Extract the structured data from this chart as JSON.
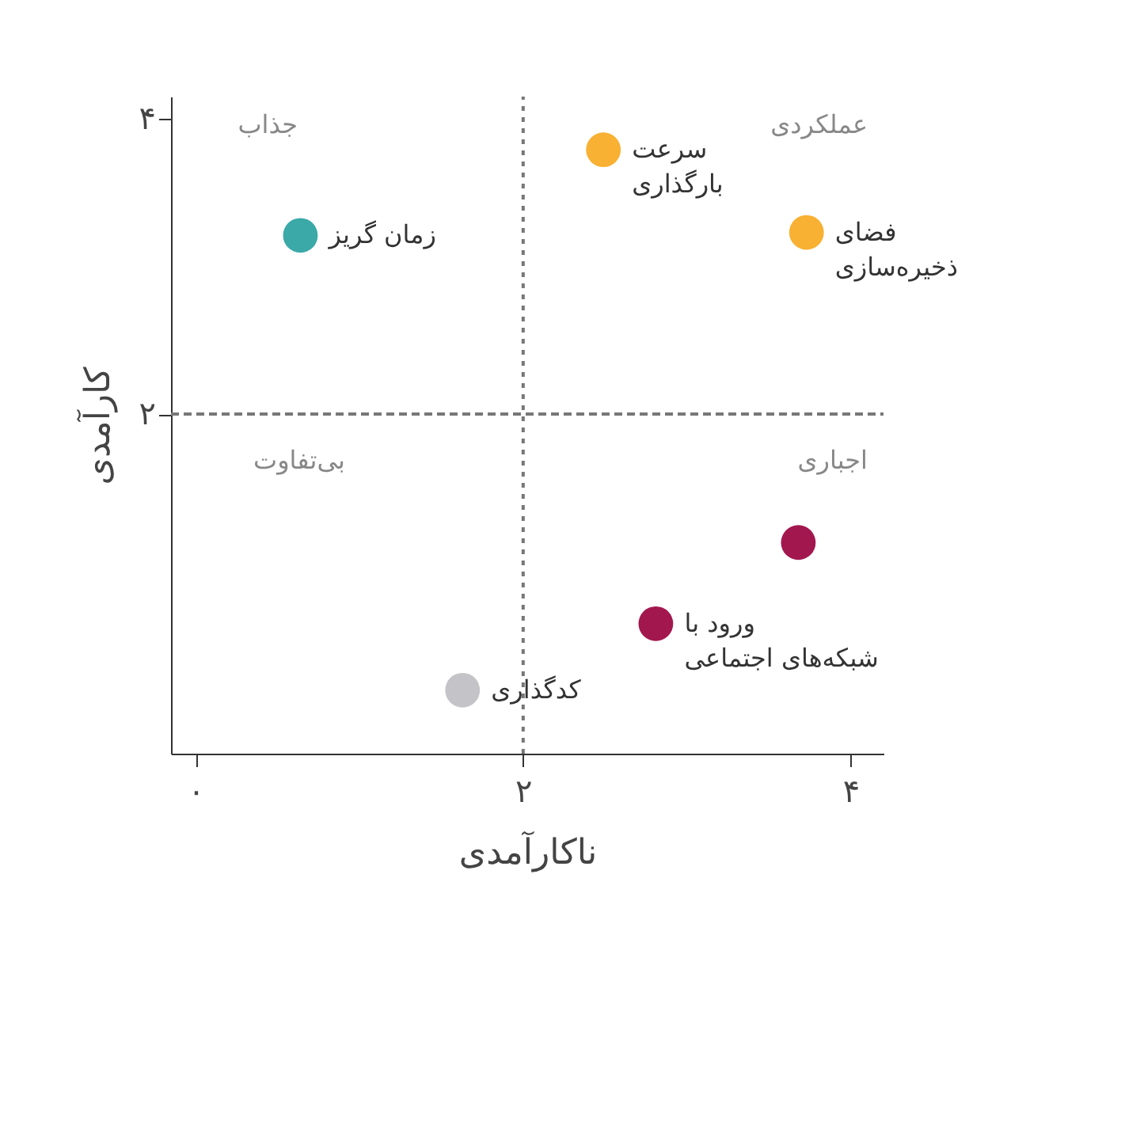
{
  "chart_data": {
    "type": "scatter",
    "xlabel": "ناکارآمدی",
    "ylabel": "کارآمدی",
    "x": [
      0.64,
      2.49,
      3.73,
      3.68,
      2.81,
      1.63
    ],
    "values": [
      3.21,
      3.79,
      3.23,
      1.13,
      0.58,
      0.13
    ],
    "colors": [
      "#3aa9a8",
      "#f8b133",
      "#f8b133",
      "#a3174f",
      "#a3174f",
      "#c4c4c8"
    ],
    "marker": "circle",
    "xlim": [
      -0.15,
      4.2
    ],
    "ylim": [
      -0.3,
      4.15
    ],
    "xticks": [
      {
        "value": 0,
        "label": "۰"
      },
      {
        "value": 2,
        "label": "۲"
      },
      {
        "value": 4,
        "label": "۴"
      }
    ],
    "yticks": [
      {
        "value": 2,
        "label": "۲"
      },
      {
        "value": 4,
        "label": "۴"
      }
    ],
    "ref_lines": [
      {
        "axis": "x",
        "value": 2,
        "line_style": "dotted",
        "color": "#777777"
      },
      {
        "axis": "y",
        "value": 2,
        "line_style": "dashed",
        "color": "#777777"
      }
    ],
    "annotations": [
      "جذاب",
      "عملکردی",
      "بی‌تفاوت",
      "اجباری",
      {
        "text": "زمان گریز",
        "x": 0.64,
        "y": 3.21
      },
      {
        "text": "سرعت\nبارگذاری",
        "x": 2.49,
        "y": 3.79
      },
      {
        "text": "فضای\nذخیره‌سازی",
        "x": 3.73,
        "y": 3.23
      },
      {
        "text": "ورود با\nشبکه‌های اجتماعی",
        "x": 2.81,
        "y": 0.58
      },
      {
        "text": "کدگذاری",
        "x": 1.63,
        "y": 0.13
      }
    ]
  }
}
